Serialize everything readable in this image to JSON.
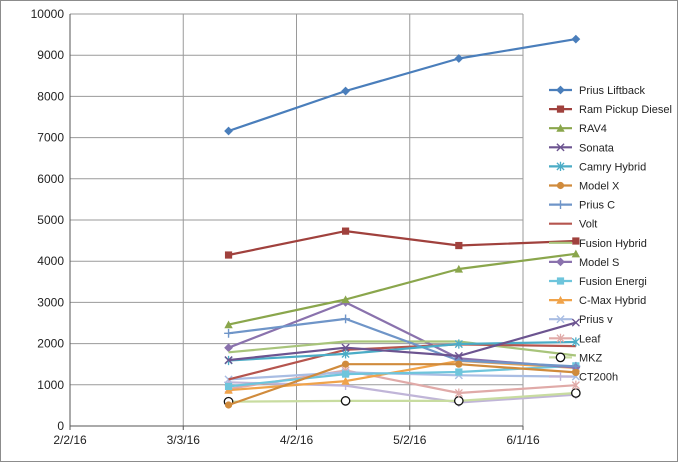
{
  "chart_data": {
    "type": "line",
    "title": "",
    "xlabel": "",
    "ylabel": "",
    "x": [
      "3/15/16",
      "4/15/16",
      "5/15/16",
      "6/15/16"
    ],
    "x_ticks": [
      "2/2/16",
      "3/3/16",
      "4/2/16",
      "5/2/16",
      "6/1/16"
    ],
    "xlim": [
      "2/2/16",
      "6/1/16"
    ],
    "ylim": [
      0,
      10000
    ],
    "y_ticks": [
      0,
      1000,
      2000,
      3000,
      4000,
      5000,
      6000,
      7000,
      8000,
      9000,
      10000
    ],
    "grid": "vertical and horizontal",
    "legend": "right",
    "series": [
      {
        "name": "Prius Liftback",
        "color": "#4a7ebb",
        "marker": "diamond",
        "values": [
          7160,
          8130,
          8920,
          9390
        ]
      },
      {
        "name": "Ram Pickup Diesel",
        "color": "#a0413d",
        "marker": "square",
        "values": [
          4150,
          4730,
          4380,
          4490
        ]
      },
      {
        "name": "RAV4",
        "color": "#8aa64c",
        "marker": "triangle",
        "values": [
          2460,
          3070,
          3810,
          4180
        ]
      },
      {
        "name": "Sonata",
        "color": "#6c5490",
        "marker": "x",
        "values": [
          1600,
          1900,
          1700,
          2510
        ]
      },
      {
        "name": "Camry Hybrid",
        "color": "#4bacc6",
        "marker": "star",
        "values": [
          1590,
          1750,
          1990,
          2040
        ]
      },
      {
        "name": "Model X",
        "color": "#d08b3c",
        "marker": "circle",
        "values": [
          510,
          1500,
          1500,
          1300
        ]
      },
      {
        "name": "Prius C",
        "color": "#6f95c8",
        "marker": "plus",
        "values": [
          2250,
          2600,
          1590,
          1450
        ]
      },
      {
        "name": "Volt",
        "color": "#b5554e",
        "marker": "none",
        "values": [
          1130,
          1850,
          1980,
          1940
        ]
      },
      {
        "name": "Fusion Hybrid",
        "color": "#a8c47b",
        "marker": "none",
        "values": [
          1790,
          2050,
          2050,
          1710
        ]
      },
      {
        "name": "Model S",
        "color": "#8a72ad",
        "marker": "diamond",
        "values": [
          1900,
          3000,
          1640,
          1420
        ]
      },
      {
        "name": "Fusion Energi",
        "color": "#6ec5dc",
        "marker": "square",
        "values": [
          960,
          1260,
          1310,
          1460
        ]
      },
      {
        "name": "C-Max Hybrid",
        "color": "#f0a34a",
        "marker": "triangle",
        "values": [
          870,
          1090,
          1580,
          1410
        ]
      },
      {
        "name": "Prius v",
        "color": "#a9bde3",
        "marker": "x",
        "values": [
          1130,
          1300,
          1230,
          1200
        ]
      },
      {
        "name": "Leaf",
        "color": "#e0aaa8",
        "marker": "star",
        "values": [
          900,
          1350,
          800,
          990
        ]
      },
      {
        "name": "MKZ",
        "color": "#c8dca0",
        "marker": "hollow-circle",
        "values": [
          590,
          610,
          610,
          800
        ]
      },
      {
        "name": "CT200h",
        "color": "#c0b5d8",
        "marker": "plus",
        "values": [
          1060,
          980,
          570,
          760
        ]
      }
    ]
  }
}
